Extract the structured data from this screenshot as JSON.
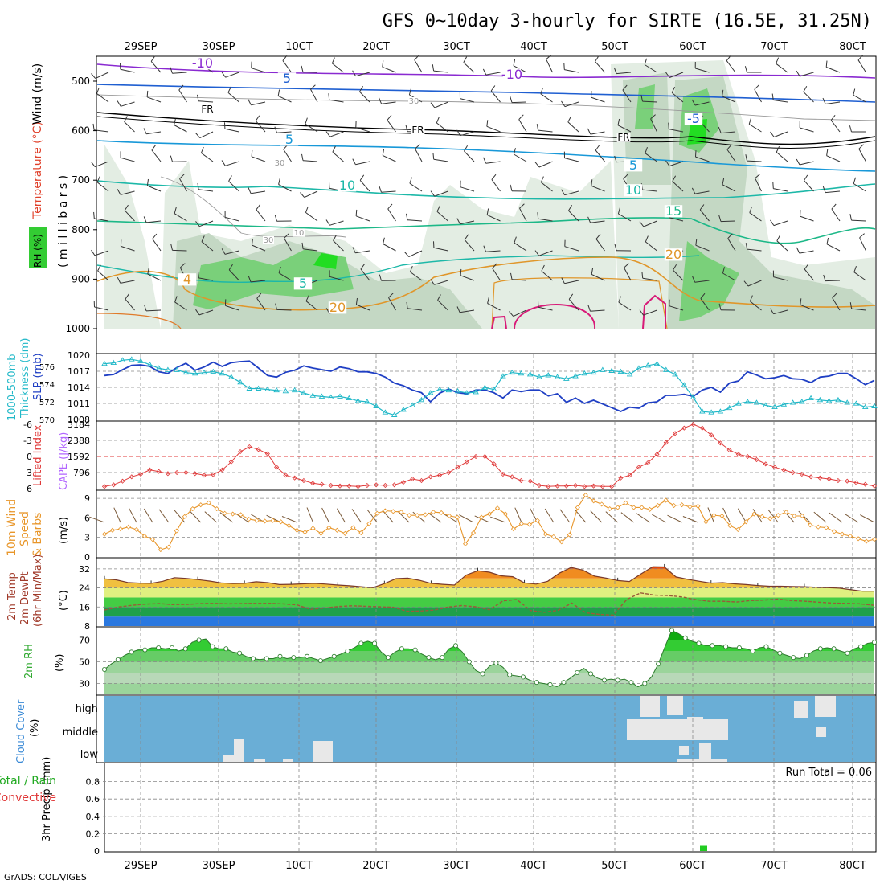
{
  "title": "GFS 0~10day 3-hourly for SIRTE (16.5E, 31.25N)",
  "credit": "GrADS: COLA/IGES",
  "dates": [
    "29SEP",
    "30SEP",
    "10CT",
    "20CT",
    "30CT",
    "40CT",
    "50CT",
    "60CT",
    "70CT",
    "80CT"
  ],
  "colors": {
    "rh": "#33cc33",
    "temp_label": "#e0402a",
    "cape": "#b266ff",
    "li": "#e03a3a",
    "slp": "#1f3fc4",
    "thick": "#20b8c8",
    "wind": "#e8962a",
    "cloud_bg": "#6aaed6",
    "cloud": "#e8e8e8",
    "precip": "#22cc22"
  },
  "chart_data": [
    {
      "type": "heatmap",
      "name": "cross-section",
      "ylabel_parts": [
        "RH (%)",
        "Temperature (°C)",
        "Wind (m/s)"
      ],
      "ylabel_unit": "( m i l l i b a r s )",
      "y_ticks": [
        "500",
        "600",
        "700",
        "800",
        "900",
        "1000"
      ],
      "contour_labels": [
        {
          "t": "-10",
          "c": "#8a2ad1"
        },
        {
          "t": "-10",
          "c": "#8a2ad1"
        },
        {
          "t": "5",
          "c": "#1f5fd1"
        },
        {
          "t": "-5",
          "c": "#1f5fd1"
        },
        {
          "t": "FR",
          "c": "#000000"
        },
        {
          "t": "FR",
          "c": "#000000"
        },
        {
          "t": "FR",
          "c": "#000000"
        },
        {
          "t": "5",
          "c": "#1898d8"
        },
        {
          "t": "5",
          "c": "#1898d8"
        },
        {
          "t": "10",
          "c": "#1db8a8"
        },
        {
          "t": "10",
          "c": "#1db8a8"
        },
        {
          "t": "15",
          "c": "#1db888"
        },
        {
          "t": "5",
          "c": "#1db8a8"
        },
        {
          "t": "20",
          "c": "#e0962a"
        },
        {
          "t": "20",
          "c": "#e0962a"
        },
        {
          "t": "4",
          "c": "#e0962a"
        },
        {
          "t": "30",
          "c": "#999999"
        },
        {
          "t": "30",
          "c": "#999999"
        },
        {
          "t": "30",
          "c": "#999999"
        },
        {
          "t": "10",
          "c": "#999999"
        }
      ]
    },
    {
      "type": "line",
      "name": "slp-thickness",
      "ylabel_parts": [
        "1000-500mb",
        "Thickness (dm)",
        "SLP (mb)"
      ],
      "left_ticks": [
        "576",
        "574",
        "572",
        "570"
      ],
      "right_ticks": [
        "1020",
        "1017",
        "1014",
        "1011",
        "1008"
      ],
      "series": [
        {
          "name": "SLP (mb)",
          "values": [
            1016.2,
            1016.4,
            1017.3,
            1018.1,
            1018.2,
            1017.9,
            1016.9,
            1016.6,
            1017.7,
            1018.5,
            1017.2,
            1017.8,
            1018.7,
            1017.9,
            1018.6,
            1018.8,
            1018.9,
            1017.6,
            1016.2,
            1015.9,
            1016.8,
            1017.2,
            1018.0,
            1017.6,
            1017.3,
            1017.0,
            1017.8,
            1017.5,
            1016.9,
            1016.9,
            1016.6,
            1015.9,
            1014.8,
            1014.3,
            1013.5,
            1013.0,
            1011.3,
            1012.9,
            1013.7,
            1013.0,
            1012.8,
            1013.5,
            1013.5,
            1013.0,
            1012.0,
            1013.5,
            1013.2,
            1013.5,
            1013.5,
            1012.4,
            1012.8,
            1011.2,
            1012.0,
            1011.0,
            1011.6,
            1010.9,
            1010.2,
            1009.5,
            1010.3,
            1010.1,
            1011.1,
            1011.3,
            1012.5,
            1012.5,
            1012.7,
            1012.3,
            1013.5,
            1014.0,
            1013.1,
            1014.8,
            1015.2,
            1016.9,
            1016.3,
            1015.6,
            1015.8,
            1016.2,
            1015.6,
            1015.5,
            1014.9,
            1015.9,
            1016.1,
            1016.6,
            1016.6,
            1015.6,
            1014.5,
            1015.3
          ]
        },
        {
          "name": "1000-500mb Thickness (dm)",
          "values": [
            576.3,
            576.4,
            576.7,
            576.8,
            576.6,
            576.2,
            575.8,
            575.6,
            575.6,
            575.3,
            575.2,
            575.3,
            575.4,
            575.2,
            574.8,
            574.2,
            573.5,
            573.5,
            573.4,
            573.3,
            573.2,
            573.3,
            573.0,
            572.7,
            572.6,
            572.5,
            572.6,
            572.4,
            572.1,
            572.0,
            571.5,
            570.8,
            570.5,
            571.1,
            571.6,
            572.2,
            573.0,
            573.4,
            573.3,
            573.2,
            573.0,
            573.1,
            573.6,
            573.4,
            574.9,
            575.3,
            575.2,
            575.1,
            574.8,
            575.0,
            574.8,
            574.6,
            574.9,
            575.2,
            575.3,
            575.6,
            575.5,
            575.4,
            575.1,
            575.8,
            576.1,
            576.3,
            575.6,
            575.1,
            573.9,
            572.5,
            570.9,
            570.8,
            570.9,
            571.3,
            571.8,
            572.0,
            571.9,
            571.6,
            571.4,
            571.7,
            571.9,
            572.0,
            572.4,
            572.2,
            572.1,
            572.2,
            571.9,
            571.8,
            571.4,
            571.5
          ]
        }
      ]
    },
    {
      "type": "bar",
      "name": "li-cape",
      "ylabel_parts": [
        "Lifted Index",
        "CAPE (J/kg)"
      ],
      "left_ticks": [
        "-6",
        "-3",
        "0",
        "3",
        "6"
      ],
      "right_ticks": [
        "3184",
        "2388",
        "1592",
        "796"
      ],
      "series": [
        {
          "name": "Lifted Index",
          "values": [
            5.6,
            5.3,
            4.6,
            3.8,
            3.3,
            2.5,
            2.8,
            3.2,
            3.0,
            3.0,
            3.2,
            3.5,
            3.4,
            2.5,
            1.0,
            -0.9,
            -1.8,
            -1.3,
            -0.5,
            2.0,
            3.5,
            4.0,
            4.5,
            5.0,
            5.2,
            5.4,
            5.5,
            5.5,
            5.6,
            5.4,
            5.3,
            5.4,
            5.3,
            4.8,
            4.2,
            4.5,
            3.8,
            3.5,
            3.0,
            2.0,
            1.0,
            0.0,
            0.0,
            1.4,
            3.3,
            3.8,
            4.5,
            4.6,
            5.4,
            5.6,
            5.5,
            5.5,
            5.4,
            5.6,
            5.5,
            5.6,
            5.6,
            4.0,
            3.5,
            2.0,
            1.2,
            -0.4,
            -2.6,
            -4.3,
            -5.3,
            -6.0,
            -5.3,
            -4.0,
            -2.5,
            -1.2,
            -0.4,
            0.0,
            0.6,
            1.4,
            2.0,
            2.5,
            3.0,
            3.3,
            3.8,
            4.0,
            4.2,
            4.5,
            4.6,
            4.9,
            5.2,
            5.5
          ]
        },
        {
          "name": "CAPE (J/kg)",
          "values": [
            0,
            0,
            0,
            0,
            0,
            0,
            0,
            0,
            0,
            0,
            0,
            0,
            0,
            0,
            0,
            0,
            0,
            0,
            0,
            0,
            0,
            0,
            0,
            0,
            0,
            0,
            0,
            0,
            0,
            0,
            0,
            0,
            0,
            0,
            0,
            0,
            0,
            0,
            0,
            0,
            0,
            0,
            0,
            0,
            0,
            0,
            0,
            0,
            0,
            0,
            0,
            0,
            0,
            0,
            0,
            0,
            0,
            0,
            0,
            0,
            0,
            0,
            0,
            0,
            0,
            0,
            0,
            0,
            0,
            0,
            0,
            0,
            0,
            0,
            0,
            0,
            0,
            0,
            0,
            0,
            0,
            0,
            0,
            0,
            0,
            0
          ]
        }
      ]
    },
    {
      "type": "line",
      "name": "wind10m",
      "ylabel_parts": [
        "10m Wind",
        "Speed",
        "& Barbs"
      ],
      "ylabel_unit": "(m/s)",
      "y_ticks": [
        "9",
        "6",
        "3",
        "0"
      ],
      "series": [
        {
          "name": "10m Wind Speed",
          "values": [
            3.5,
            4.1,
            4.3,
            4.6,
            4.2,
            3.2,
            2.7,
            1.1,
            1.5,
            4.0,
            6.2,
            7.4,
            8.0,
            8.3,
            7.4,
            6.7,
            6.6,
            6.5,
            5.8,
            5.6,
            5.5,
            5.6,
            5.4,
            4.8,
            4.1,
            3.8,
            4.4,
            3.6,
            4.5,
            4.1,
            3.6,
            4.5,
            3.7,
            5.1,
            6.7,
            7.1,
            7.0,
            6.9,
            6.4,
            6.4,
            6.5,
            6.9,
            6.8,
            6.3,
            6.1,
            2.0,
            3.7,
            6.1,
            6.6,
            7.5,
            6.6,
            4.3,
            5.1,
            5.0,
            5.6,
            3.5,
            3.1,
            2.3,
            3.4,
            7.6,
            9.5,
            8.6,
            8.1,
            7.4,
            7.6,
            8.3,
            7.6,
            7.6,
            7.3,
            7.9,
            8.7,
            7.9,
            8.0,
            7.7,
            7.8,
            5.4,
            6.4,
            6.3,
            4.8,
            4.2,
            5.4,
            6.6,
            6.2,
            5.9,
            6.4,
            6.9,
            6.3,
            6.3,
            4.9,
            4.6,
            4.5,
            3.9,
            3.5,
            3.2,
            2.8,
            2.4,
            2.7
          ]
        }
      ]
    },
    {
      "type": "area",
      "name": "temp2m",
      "ylabel_parts": [
        "2m Temp",
        "2m DewPt",
        "(6hr Min/Max)"
      ],
      "ylabel_unit": "(°C)",
      "y_ticks": [
        "32",
        "24",
        "16",
        "8"
      ],
      "series": [
        {
          "name": "2m Temp",
          "values": [
            27.8,
            27.4,
            26.3,
            26.0,
            25.9,
            26.8,
            28.3,
            28.0,
            27.5,
            26.9,
            26.1,
            25.8,
            25.9,
            26.6,
            26.2,
            25.4,
            25.5,
            25.7,
            25.9,
            25.6,
            25.2,
            24.9,
            24.5,
            24.1,
            25.8,
            27.9,
            28.1,
            27.2,
            25.9,
            25.5,
            25.2,
            29.4,
            31.2,
            30.6,
            29.1,
            28.7,
            26.1,
            25.6,
            26.8,
            30.2,
            32.6,
            31.5,
            29.0,
            28.1,
            27.1,
            26.7,
            29.9,
            32.9,
            32.8,
            28.6,
            27.6,
            26.8,
            26.0,
            26.2,
            25.7,
            25.4,
            25.0,
            24.7,
            24.7,
            24.6,
            24.5,
            24.3,
            24.1,
            23.9,
            23.2,
            22.6,
            22.6
          ]
        },
        {
          "name": "2m DewPt",
          "values": [
            14.7,
            16.0,
            16.7,
            17.2,
            17.4,
            17.0,
            17.1,
            17.4,
            17.5,
            17.3,
            17.4,
            17.5,
            17.5,
            17.3,
            16.9,
            15.0,
            15.6,
            16.2,
            16.5,
            16.3,
            16.1,
            15.9,
            14.2,
            14.3,
            14.7,
            16.0,
            16.6,
            16.1,
            14.8,
            18.6,
            19.1,
            14.5,
            13.8,
            14.6,
            17.6,
            13.6,
            12.9,
            12.6,
            19.2,
            21.9,
            21.0,
            20.8,
            20.2,
            19.1,
            18.4,
            18.4,
            18.1,
            18.7,
            18.9,
            19.3,
            18.7,
            18.4,
            18.0,
            17.6,
            17.5,
            17.3,
            16.7
          ]
        }
      ]
    },
    {
      "type": "area",
      "name": "rh2m",
      "ylabel": "2m RH",
      "ylabel_unit": "(%)",
      "y_ticks": [
        "70",
        "50",
        "30"
      ],
      "series": [
        {
          "name": "2m RH",
          "values": [
            43,
            48,
            52,
            56,
            59,
            61,
            61,
            63,
            63,
            62,
            63,
            60,
            62,
            68,
            70,
            71,
            64,
            62,
            62,
            59,
            58,
            55,
            53,
            52,
            53,
            53,
            55,
            53,
            54,
            54,
            55,
            53,
            51,
            53,
            55,
            57,
            60,
            63,
            67,
            69,
            67,
            59,
            54,
            59,
            62,
            62,
            61,
            57,
            54,
            52,
            54,
            62,
            65,
            59,
            50,
            42,
            39,
            46,
            49,
            45,
            38,
            37,
            36,
            33,
            31,
            30,
            29,
            27,
            31,
            35,
            40,
            44,
            39,
            35,
            33,
            34,
            33,
            34,
            31,
            27,
            30,
            36,
            48,
            64,
            79,
            76,
            72,
            69,
            67,
            65,
            65,
            65,
            64,
            63,
            63,
            62,
            60,
            63,
            64,
            61,
            58,
            56,
            54,
            53,
            56,
            60,
            62,
            63,
            62,
            60,
            58,
            62,
            64,
            67,
            68
          ]
        }
      ]
    },
    {
      "type": "bar",
      "name": "cloud-cover",
      "ylabel_parts": [
        "Cloud Cover",
        "(%)"
      ],
      "levels": [
        "high",
        "middle",
        "low"
      ]
    },
    {
      "type": "bar",
      "name": "precip",
      "ylabel_parts": [
        "3hr Precip (mm)",
        "Total / Rain",
        "Convective"
      ],
      "y_ticks": [
        "0.8",
        "0.6",
        "0.4",
        "0.2",
        "0"
      ],
      "annotation": "Run Total = 0.06",
      "values": [
        0.06
      ]
    }
  ]
}
